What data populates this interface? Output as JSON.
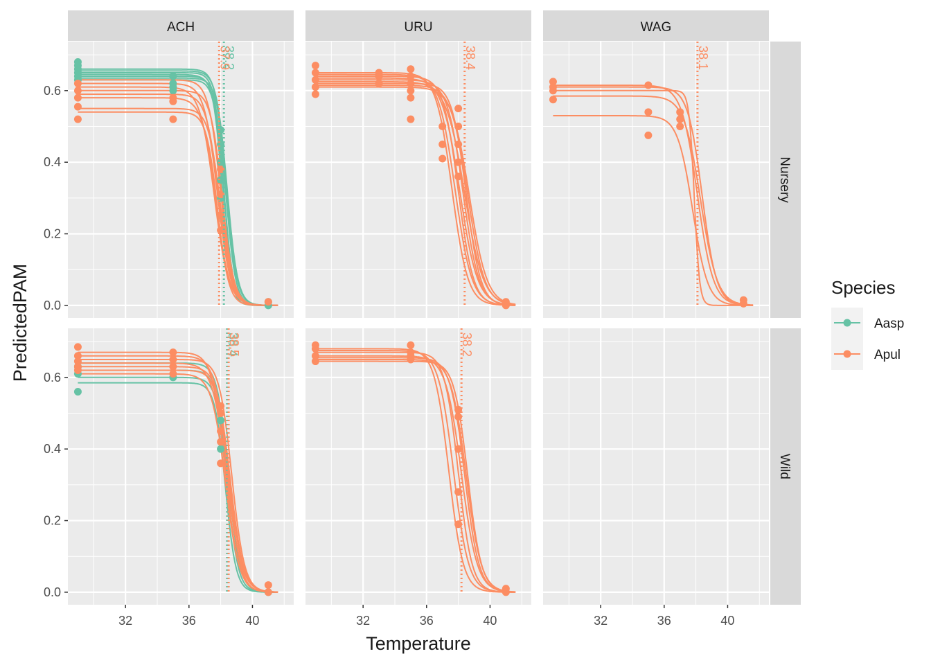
{
  "chart_data": {
    "type": "line",
    "x_label": "Temperature",
    "y_label": "PredictedPAM",
    "legend_title": "Species",
    "legend_position": "right",
    "columns": [
      "ACH",
      "URU",
      "WAG"
    ],
    "rows": [
      "Nursery",
      "Wild"
    ],
    "xlim": [
      28.37,
      42.6
    ],
    "xticks": [
      32,
      36,
      40
    ],
    "ylim": [
      -0.035,
      0.737
    ],
    "yticks": [
      {
        "value": 0,
        "label": "0.0"
      },
      0.2,
      0.4,
      0.6
    ],
    "grid": true,
    "curve_xlim": [
      29,
      41.6
    ],
    "series": [
      {
        "name": "Aasp",
        "color": "#66c2a5"
      },
      {
        "name": "Apul",
        "color": "#fc8d62"
      }
    ],
    "panels": [
      [
        {
          "curves": [
            {
              "series": 0,
              "top": 0.66,
              "ed50": 38.3,
              "slope": 3.2
            },
            {
              "series": 0,
              "top": 0.655,
              "ed50": 38.4,
              "slope": 3.0
            },
            {
              "series": 0,
              "top": 0.65,
              "ed50": 38.2,
              "slope": 3.4
            },
            {
              "series": 0,
              "top": 0.645,
              "ed50": 38.3,
              "slope": 2.8
            },
            {
              "series": 0,
              "top": 0.64,
              "ed50": 38.1,
              "slope": 3.6
            },
            {
              "series": 0,
              "top": 0.635,
              "ed50": 38.4,
              "slope": 3.1
            },
            {
              "series": 0,
              "top": 0.63,
              "ed50": 38.2,
              "slope": 3.3
            },
            {
              "series": 1,
              "top": 0.63,
              "ed50": 38.0,
              "slope": 2.6
            },
            {
              "series": 1,
              "top": 0.62,
              "ed50": 37.8,
              "slope": 2.4
            },
            {
              "series": 1,
              "top": 0.61,
              "ed50": 37.6,
              "slope": 2.2
            },
            {
              "series": 1,
              "top": 0.6,
              "ed50": 38.1,
              "slope": 2.7
            },
            {
              "series": 1,
              "top": 0.59,
              "ed50": 37.9,
              "slope": 2.5
            },
            {
              "series": 1,
              "top": 0.58,
              "ed50": 37.7,
              "slope": 2.3
            },
            {
              "series": 1,
              "top": 0.55,
              "ed50": 38.0,
              "slope": 2.6
            },
            {
              "series": 1,
              "top": 0.54,
              "ed50": 37.8,
              "slope": 2.8
            }
          ],
          "points": [
            {
              "series": 0,
              "x": [
                29,
                29,
                29,
                29,
                29,
                29,
                35,
                35,
                35,
                35,
                38,
                38,
                38,
                38,
                38,
                38,
                41,
                41
              ],
              "y": [
                0.68,
                0.67,
                0.66,
                0.65,
                0.64,
                0.63,
                0.64,
                0.62,
                0.61,
                0.6,
                0.49,
                0.45,
                0.4,
                0.35,
                0.3,
                0.25,
                0.0,
                0.01
              ]
            },
            {
              "series": 1,
              "x": [
                29,
                29,
                29,
                29,
                29,
                35,
                35,
                35,
                38,
                38,
                38,
                38,
                41
              ],
              "y": [
                0.62,
                0.6,
                0.58,
                0.555,
                0.52,
                0.58,
                0.57,
                0.52,
                0.38,
                0.31,
                0.25,
                0.21,
                0.01
              ]
            }
          ],
          "vlines": [
            {
              "series": 0,
              "value": 38.2
            },
            {
              "series": 1,
              "value": 37.9
            }
          ]
        },
        {
          "curves": [
            {
              "series": 1,
              "top": 0.65,
              "ed50": 37.6,
              "slope": 2.0
            },
            {
              "series": 1,
              "top": 0.645,
              "ed50": 37.8,
              "slope": 1.9
            },
            {
              "series": 1,
              "top": 0.64,
              "ed50": 38.0,
              "slope": 2.1
            },
            {
              "series": 1,
              "top": 0.635,
              "ed50": 38.1,
              "slope": 1.8
            },
            {
              "series": 1,
              "top": 0.63,
              "ed50": 38.3,
              "slope": 2.0
            },
            {
              "series": 1,
              "top": 0.625,
              "ed50": 38.4,
              "slope": 1.7
            },
            {
              "series": 1,
              "top": 0.62,
              "ed50": 38.5,
              "slope": 2.2
            },
            {
              "series": 1,
              "top": 0.615,
              "ed50": 38.6,
              "slope": 1.9
            },
            {
              "series": 1,
              "top": 0.61,
              "ed50": 38.7,
              "slope": 1.8
            }
          ],
          "points": [
            {
              "series": 1,
              "x": [
                29,
                29,
                29,
                29,
                29,
                33,
                33,
                33,
                35,
                35,
                35,
                35,
                35,
                35,
                37,
                37,
                37,
                38,
                38,
                38,
                38,
                38,
                41,
                41
              ],
              "y": [
                0.67,
                0.65,
                0.63,
                0.61,
                0.59,
                0.65,
                0.64,
                0.62,
                0.66,
                0.64,
                0.62,
                0.6,
                0.58,
                0.52,
                0.5,
                0.45,
                0.41,
                0.55,
                0.5,
                0.45,
                0.4,
                0.36,
                0.0,
                0.01
              ]
            }
          ],
          "vlines": [
            {
              "series": 1,
              "value": 38.4
            }
          ]
        },
        {
          "curves": [
            {
              "series": 1,
              "top": 0.615,
              "ed50": 38.1,
              "slope": 2.0
            },
            {
              "series": 1,
              "top": 0.61,
              "ed50": 38.4,
              "slope": 2.2
            },
            {
              "series": 1,
              "top": 0.585,
              "ed50": 38.3,
              "slope": 1.9
            },
            {
              "series": 1,
              "top": 0.53,
              "ed50": 37.8,
              "slope": 2.1
            },
            {
              "series": 1,
              "top": 0.6,
              "ed50": 37.9,
              "slope": 6.0
            }
          ],
          "points": [
            {
              "series": 1,
              "x": [
                29,
                29,
                29,
                29,
                35,
                35,
                35,
                37,
                37,
                37,
                41,
                41
              ],
              "y": [
                0.625,
                0.61,
                0.6,
                0.575,
                0.615,
                0.54,
                0.475,
                0.54,
                0.52,
                0.5,
                0.015,
                0.005
              ]
            }
          ],
          "vlines": [
            {
              "series": 1,
              "value": 38.1
            }
          ]
        }
      ],
      [
        {
          "curves": [
            {
              "series": 0,
              "top": 0.64,
              "ed50": 38.5,
              "slope": 2.8
            },
            {
              "series": 0,
              "top": 0.62,
              "ed50": 38.4,
              "slope": 2.9
            },
            {
              "series": 0,
              "top": 0.6,
              "ed50": 38.5,
              "slope": 2.7
            },
            {
              "series": 0,
              "top": 0.585,
              "ed50": 38.3,
              "slope": 3.0
            },
            {
              "series": 1,
              "top": 0.67,
              "ed50": 38.3,
              "slope": 2.4
            },
            {
              "series": 1,
              "top": 0.66,
              "ed50": 38.5,
              "slope": 2.3
            },
            {
              "series": 1,
              "top": 0.65,
              "ed50": 38.7,
              "slope": 2.5
            },
            {
              "series": 1,
              "top": 0.64,
              "ed50": 38.4,
              "slope": 2.2
            },
            {
              "series": 1,
              "top": 0.63,
              "ed50": 38.6,
              "slope": 2.4
            },
            {
              "series": 1,
              "top": 0.62,
              "ed50": 38.5,
              "slope": 2.6
            },
            {
              "series": 1,
              "top": 0.61,
              "ed50": 38.3,
              "slope": 2.3
            }
          ],
          "points": [
            {
              "series": 0,
              "x": [
                29,
                29,
                29,
                35,
                38,
                38,
                41
              ],
              "y": [
                0.63,
                0.61,
                0.56,
                0.6,
                0.48,
                0.4,
                0.0
              ]
            },
            {
              "series": 1,
              "x": [
                29,
                29,
                29,
                29,
                29,
                35,
                35,
                35,
                35,
                38,
                38,
                38,
                38,
                38,
                41,
                41
              ],
              "y": [
                0.685,
                0.66,
                0.645,
                0.63,
                0.62,
                0.67,
                0.65,
                0.63,
                0.61,
                0.52,
                0.5,
                0.45,
                0.42,
                0.36,
                0.02,
                0.0
              ]
            }
          ],
          "vlines": [
            {
              "series": 0,
              "value": 38.4
            },
            {
              "series": 1,
              "value": 38.5
            }
          ]
        },
        {
          "curves": [
            {
              "series": 1,
              "top": 0.68,
              "ed50": 37.4,
              "slope": 2.2
            },
            {
              "series": 1,
              "top": 0.675,
              "ed50": 37.7,
              "slope": 2.1
            },
            {
              "series": 1,
              "top": 0.67,
              "ed50": 38.0,
              "slope": 2.3
            },
            {
              "series": 1,
              "top": 0.66,
              "ed50": 38.2,
              "slope": 2.0
            },
            {
              "series": 1,
              "top": 0.655,
              "ed50": 38.4,
              "slope": 2.2
            },
            {
              "series": 1,
              "top": 0.65,
              "ed50": 38.5,
              "slope": 2.1
            },
            {
              "series": 1,
              "top": 0.645,
              "ed50": 38.6,
              "slope": 2.3
            }
          ],
          "points": [
            {
              "series": 1,
              "x": [
                29,
                29,
                29,
                29,
                35,
                35,
                35,
                35,
                38,
                38,
                38,
                38,
                38,
                41,
                41
              ],
              "y": [
                0.69,
                0.68,
                0.66,
                0.645,
                0.69,
                0.67,
                0.66,
                0.65,
                0.51,
                0.49,
                0.4,
                0.28,
                0.19,
                0.01,
                0.0
              ]
            }
          ],
          "vlines": [
            {
              "series": 1,
              "value": 38.2
            }
          ]
        },
        {
          "curves": [],
          "points": [],
          "vlines": []
        }
      ]
    ]
  }
}
